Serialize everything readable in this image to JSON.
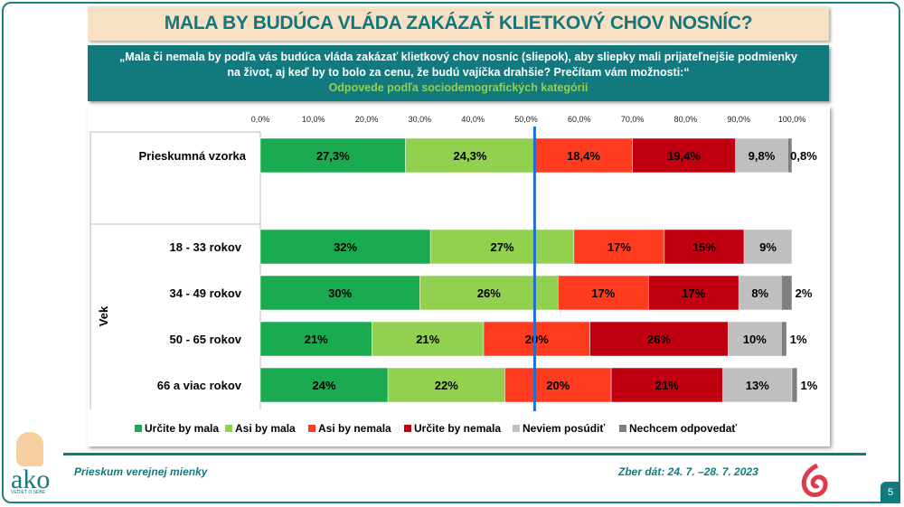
{
  "title": "MALA BY BUDÚCA VLÁDA ZAKÁZAŤ KLIETKOVÝ CHOV NOSNÍC?",
  "question": "„Mala či nemala by podľa vás budúca vláda zakázať klietkový chov nosníc (sliepok), aby sliepky mali prijateľnejšie podmienky na život, aj keď by to bolo za cenu, že budú vajíčka drahšie? Prečítam vám možnosti:“",
  "subtitle": "Odpovede podľa sociodemografických kategórií",
  "footer": {
    "left": "Prieskum verejnej mienky",
    "right": "Zber dát: 24. 7. –28. 7. 2023",
    "page": "5",
    "logo": "ako",
    "logo_tagline": "VEDIEŤ O SEBE"
  },
  "chart_data": {
    "type": "bar",
    "orientation": "horizontal",
    "stacked": true,
    "xlim": [
      0,
      100
    ],
    "ticks": [
      "0,0%",
      "10,0%",
      "20,0%",
      "30,0%",
      "40,0%",
      "50,0%",
      "60,0%",
      "70,0%",
      "80,0%",
      "90,0%",
      "100,0%"
    ],
    "group_label": "Vek",
    "reference_line": 51.6,
    "colors": [
      "#1aaa50",
      "#92d050",
      "#ff3b1f",
      "#c00010",
      "#bfbfbf",
      "#7f7f7f"
    ],
    "series_names": [
      "Určite by mala",
      "Asi by mala",
      "Asi by nemala",
      "Určite by nemala",
      "Neviem posúdiť",
      "Nechcem odpovedať"
    ],
    "rows": [
      {
        "category": "Prieskumná vzorka",
        "values": [
          27.3,
          24.3,
          18.4,
          19.4,
          9.8,
          0.8
        ],
        "labels": [
          "27,3%",
          "24,3%",
          "18,4%",
          "19,4%",
          "9,8%",
          "0,8%"
        ]
      },
      {
        "category": "18 - 33 rokov",
        "values": [
          32,
          27,
          17,
          15,
          9,
          0
        ],
        "labels": [
          "32%",
          "27%",
          "17%",
          "15%",
          "9%",
          ""
        ]
      },
      {
        "category": "34 - 49 rokov",
        "values": [
          30,
          26,
          17,
          17,
          8,
          2
        ],
        "labels": [
          "30%",
          "26%",
          "17%",
          "17%",
          "8%",
          "2%"
        ]
      },
      {
        "category": "50 - 65 rokov",
        "values": [
          21,
          21,
          20,
          26,
          10,
          1
        ],
        "labels": [
          "21%",
          "21%",
          "20%",
          "26%",
          "10%",
          "1%"
        ]
      },
      {
        "category": "66 a viac rokov",
        "values": [
          24,
          22,
          20,
          21,
          13,
          1
        ],
        "labels": [
          "24%",
          "22%",
          "20%",
          "21%",
          "13%",
          "1%"
        ]
      }
    ],
    "legend": "bottom"
  }
}
